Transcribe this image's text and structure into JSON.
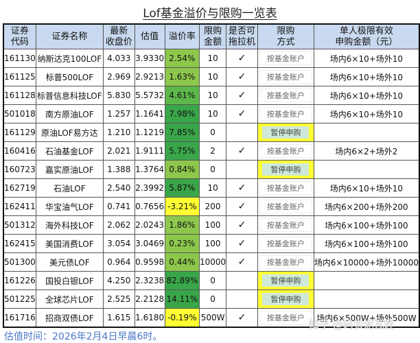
{
  "title": "Lof基金溢价与限购一览表",
  "headers": [
    "证券代码",
    "证券名称",
    "最新收盘价",
    "估值",
    "溢价率",
    "限购金额",
    "是否可拖拉机",
    "限购方式",
    "单人极限有效申购金额（元）"
  ],
  "header_lines": [
    [
      "证券",
      "代码"
    ],
    [
      "证券名称"
    ],
    [
      "最新",
      "收盘价"
    ],
    [
      "估值"
    ],
    [
      "溢价率"
    ],
    [
      "限购",
      "金额"
    ],
    [
      "是否可",
      "拖拉机"
    ],
    [
      "限购",
      "方式"
    ],
    [
      "单人极限有效",
      "申购金额（元）"
    ]
  ],
  "colors": {
    "header_bg": "#c9d9ef",
    "premium_light": "#8dc74c",
    "premium_mid": "#5cb84a",
    "premium_dark": "#3aa64a",
    "premium_negative": "#ffff33",
    "suspend_bg": "#ffff33",
    "footer_text": "#4a78c8"
  },
  "rows": [
    {
      "code": "161130",
      "name": "纳斯达克100LOF",
      "close": "4.033",
      "nav": "3.9330",
      "premium": "2.54%",
      "limit": "10",
      "tractor": "✓",
      "method": "按基金账户",
      "max": "场内6×10+场外10",
      "tone": "light"
    },
    {
      "code": "161125",
      "name": "标普500LOF",
      "close": "2.969",
      "nav": "2.9213",
      "premium": "1.63%",
      "limit": "10",
      "tractor": "✓",
      "method": "按基金账户",
      "max": "场内6×10+场外10",
      "tone": "light"
    },
    {
      "code": "161128",
      "name": "标普信息科技LOF",
      "close": "5.830",
      "nav": "5.5732",
      "premium": "4.61%",
      "limit": "10",
      "tractor": "✓",
      "method": "按基金账户",
      "max": "场内6×10+场外10",
      "tone": "mid"
    },
    {
      "code": "501018",
      "name": "南方原油LOF",
      "close": "1.257",
      "nav": "1.1641",
      "premium": "7.98%",
      "limit": "10",
      "tractor": "✓",
      "method": "按基金账户",
      "max": "场内6×10+场外10",
      "tone": "dark"
    },
    {
      "code": "161129",
      "name": "原油LOF易方达",
      "close": "1.210",
      "nav": "1.1219",
      "premium": "7.85%",
      "limit": "0",
      "tractor": "",
      "method": "暂停申购",
      "max": "",
      "tone": "dark"
    },
    {
      "code": "160416",
      "name": "石油基金LOF",
      "close": "2.021",
      "nav": "1.9111",
      "premium": "5.75%",
      "limit": "2",
      "tractor": "✓",
      "method": "按基金账户",
      "max": "场内6×2+场外2",
      "tone": "dark"
    },
    {
      "code": "160723",
      "name": "嘉实原油LOF",
      "close": "1.388",
      "nav": "1.3764",
      "premium": "0.84%",
      "limit": "0",
      "tractor": "",
      "method": "暂停申购",
      "max": "",
      "tone": "light"
    },
    {
      "code": "162719",
      "name": "石油LOF",
      "close": "2.540",
      "nav": "2.3992",
      "premium": "5.87%",
      "limit": "10",
      "tractor": "✓",
      "method": "按基金账户",
      "max": "场内6×10+场外10",
      "tone": "dark"
    },
    {
      "code": "162411",
      "name": "华宝油气LOF",
      "close": "0.741",
      "nav": "0.7656",
      "premium": "-3.21%",
      "limit": "200",
      "tractor": "✓",
      "method": "按基金账户",
      "max": "场内6×200+场外200",
      "tone": "negative"
    },
    {
      "code": "501312",
      "name": "海外科技LOF",
      "close": "2.062",
      "nav": "2.0243",
      "premium": "1.86%",
      "limit": "100",
      "tractor": "✓",
      "method": "按基金账户",
      "max": "场内6×100+场外100",
      "tone": "light"
    },
    {
      "code": "162415",
      "name": "美国消费LOF",
      "close": "3.054",
      "nav": "3.0469",
      "premium": "0.23%",
      "limit": "100",
      "tractor": "✓",
      "method": "按基金账户",
      "max": "场内6×100+场外100",
      "tone": "light"
    },
    {
      "code": "501300",
      "name": "美元债LOF",
      "close": "0.964",
      "nav": "0.9598",
      "premium": "0.44%",
      "limit": "10000",
      "tractor": "✓",
      "method": "按基金账户",
      "max": "场内6×10000+场外10000",
      "tone": "light"
    },
    {
      "code": "161226",
      "name": "国投白银LOF",
      "close": "4.250",
      "nav": "2.3238",
      "premium": "82.89%",
      "limit": "0",
      "tractor": "",
      "method": "暂停申购",
      "max": "",
      "tone": "dark"
    },
    {
      "code": "501225",
      "name": "全球芯片LOF",
      "close": "2.525",
      "nav": "2.2128",
      "premium": "14.11%",
      "limit": "0",
      "tractor": "",
      "method": "暂停申购",
      "max": "",
      "tone": "dark"
    },
    {
      "code": "161716",
      "name": "招商双债LOF",
      "close": "1.615",
      "nav": "1.6180",
      "premium": "-0.19%",
      "limit": "500W",
      "tractor": "✓",
      "method": "按基金账户",
      "max": "场内6×500W+场外500W",
      "tone": "negative"
    }
  ],
  "footer": "估值时间：2026年2月4日早晨6时。",
  "watermark": "知乎 @码农泥瓦匠"
}
